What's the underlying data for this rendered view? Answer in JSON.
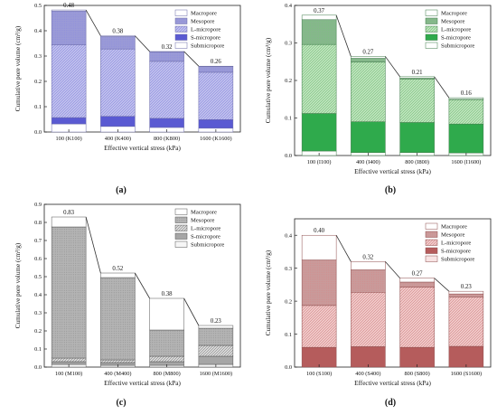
{
  "figure": {
    "layers": [
      "Submicropore",
      "S-micropore",
      "L-micropore",
      "Mesopore",
      "Macropore"
    ],
    "legend_order": [
      "Macropore",
      "Mesopore",
      "L-micropore",
      "S-micropore",
      "Submicropore"
    ]
  },
  "chart_data": [
    {
      "panel": "(a)",
      "type": "bar",
      "stacked": true,
      "xlabel": "Effective vertical stress (kPa)",
      "ylabel": "Cumulative pore volume (cm³/g)",
      "ylim": [
        0,
        0.5
      ],
      "yticks": [
        "0.0",
        "0.1",
        "0.2",
        "0.3",
        "0.4",
        "0.5"
      ],
      "legend_position": "top-right",
      "categories": [
        "100 (K100)",
        "400 (K400)",
        "800 (K800)",
        "1600 (K1600)"
      ],
      "totals": [
        "0.48",
        "0.38",
        "0.32",
        "0.26"
      ],
      "colors": {
        "Macropore": "#ffffff",
        "Mesopore": "#9a9ad6",
        "L-micropore": "#c6c6ee",
        "S-micropore": "#5a5ad2",
        "Submicropore": "#ffffff",
        "Pattern": "#8c8ce0",
        "Stroke": "#6a6aa8"
      },
      "series": [
        {
          "name": "Submicropore",
          "values": [
            0.032,
            0.022,
            0.018,
            0.015
          ]
        },
        {
          "name": "Mesopore",
          "values": [
            0.133,
            0.049,
            0.037,
            0.022
          ]
        },
        {
          "name": "L-micropore",
          "values": [
            0.288,
            0.266,
            0.225,
            0.187
          ]
        },
        {
          "name": "S-micropore",
          "values": [
            0.025,
            0.04,
            0.036,
            0.034
          ]
        },
        {
          "name": "Macropore",
          "values": [
            0.004,
            0.003,
            0.002,
            0.002
          ]
        }
      ]
    },
    {
      "panel": "(b)",
      "type": "bar",
      "stacked": true,
      "xlabel": "Effective vertical stress (kPa)",
      "ylabel": "Cumulative pore volume (cm³/g)",
      "ylim": [
        0,
        0.4
      ],
      "yticks": [
        "0.0",
        "0.1",
        "0.2",
        "0.3",
        "0.4"
      ],
      "legend_position": "top-right",
      "categories": [
        "100 (I100)",
        "400 (I400)",
        "800 (I800)",
        "1600 (I1600)"
      ],
      "totals": [
        "0.37",
        "0.27",
        "0.21",
        "0.16"
      ],
      "colors": {
        "Macropore": "#ffffff",
        "Mesopore": "#86b68c",
        "L-micropore": "#c4e6c2",
        "S-micropore": "#2faa4c",
        "Submicropore": "#ffffff",
        "Pattern": "#7cc27e",
        "Stroke": "#3e7a48"
      },
      "series": [
        {
          "name": "Submicropore",
          "values": [
            0.012,
            0.008,
            0.008,
            0.007
          ]
        },
        {
          "name": "Mesopore",
          "values": [
            0.066,
            0.01,
            0.002,
            0.001
          ]
        },
        {
          "name": "L-micropore",
          "values": [
            0.184,
            0.159,
            0.116,
            0.065
          ]
        },
        {
          "name": "S-micropore",
          "values": [
            0.1,
            0.082,
            0.08,
            0.077
          ]
        },
        {
          "name": "Macropore",
          "values": [
            0.012,
            0.005,
            0.004,
            0.004
          ]
        }
      ]
    },
    {
      "panel": "(c)",
      "type": "bar",
      "stacked": true,
      "xlabel": "Effective vertical stress (kPa)",
      "ylabel": "Cumulative pore volume (cm³/g)",
      "ylim": [
        0,
        0.9
      ],
      "yticks": [
        "0.0",
        "0.1",
        "0.2",
        "0.3",
        "0.4",
        "0.5",
        "0.6",
        "0.7",
        "0.8",
        "0.9"
      ],
      "legend_position": "top-right",
      "categories": [
        "100 (M100)",
        "400 (M400)",
        "800 (M800)",
        "1600 (M1600)"
      ],
      "totals": [
        "0.83",
        "0.52",
        "0.38",
        "0.23"
      ],
      "colors": {
        "Macropore": "#ffffff",
        "Mesopore": "#b4b4b4",
        "L-micropore": "#e2e2e2",
        "S-micropore": "#a6a6a6",
        "Submicropore": "#f6f6f6",
        "Pattern": "#8c8c8c",
        "Stroke": "#555555"
      },
      "series": [
        {
          "name": "Macropore",
          "values": [
            0.055,
            0.025,
            0.175,
            0.015
          ]
        },
        {
          "name": "Mesopore",
          "values": [
            0.725,
            0.455,
            0.145,
            0.095
          ]
        },
        {
          "name": "L-micropore",
          "values": [
            0.02,
            0.015,
            0.03,
            0.06
          ]
        },
        {
          "name": "S-micropore",
          "values": [
            0.015,
            0.015,
            0.02,
            0.045
          ]
        },
        {
          "name": "Submicropore",
          "values": [
            0.015,
            0.01,
            0.01,
            0.015
          ]
        }
      ]
    },
    {
      "panel": "(d)",
      "type": "bar",
      "stacked": true,
      "xlabel": "Effective vertical stress (kPa)",
      "ylabel": "Cumulative pore volume (cm³/g)",
      "ylim": [
        0,
        0.45
      ],
      "yticks": [
        "0.0",
        "0.1",
        "0.2",
        "0.3",
        "0.4"
      ],
      "legend_position": "top-right",
      "categories": [
        "100 (S100)",
        "400 (S400)",
        "800 (S800)",
        "1600 (S1600)"
      ],
      "totals": [
        "0.40",
        "0.32",
        "0.27",
        "0.23"
      ],
      "colors": {
        "Macropore": "#ffffff",
        "Mesopore": "#c99a9a",
        "L-micropore": "#f3d0d0",
        "S-micropore": "#b55c5c",
        "Submicropore": "#f8e4e4",
        "Pattern": "#d48a8a",
        "Stroke": "#8c4a4a"
      },
      "series": [
        {
          "name": "Macropore",
          "values": [
            0.075,
            0.025,
            0.012,
            0.008
          ]
        },
        {
          "name": "Mesopore",
          "values": [
            0.138,
            0.068,
            0.015,
            0.01
          ]
        },
        {
          "name": "L-micropore",
          "values": [
            0.127,
            0.165,
            0.183,
            0.149
          ]
        },
        {
          "name": "S-micropore",
          "values": [
            0.06,
            0.062,
            0.06,
            0.063
          ]
        },
        {
          "name": "Submicropore",
          "values": [
            0.0,
            0.0,
            0.0,
            0.0
          ]
        }
      ]
    }
  ]
}
